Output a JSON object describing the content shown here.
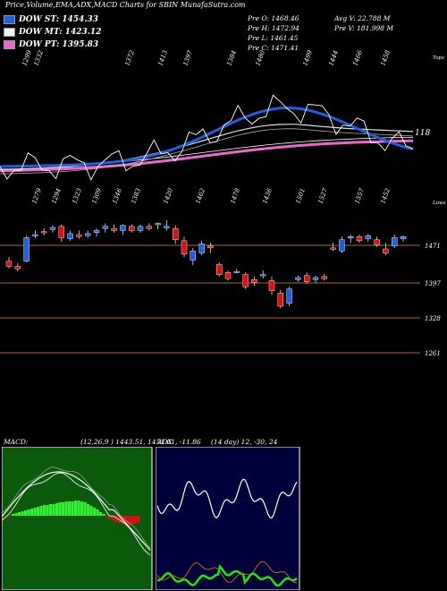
{
  "header": {
    "title": "Price,Volume,EMA,ADX,MACD Charts for SBIN",
    "site": "MunafaSutra.com"
  },
  "legend": [
    {
      "label": "DOW ST: 1454.33",
      "color": "#1f5fe0"
    },
    {
      "label": "DOW MT: 1423.12",
      "color": "#f2f2f2"
    },
    {
      "label": "DOW PT: 1395.83",
      "color": "#ee66cc"
    }
  ],
  "stats": {
    "pre_o": "Pre  O: 1468.46",
    "pre_h": "Pre  H: 1472.94",
    "pre_l": "Pre  L: 1461.45",
    "pre_c": "Pre  C: 1471.41",
    "avg_v": "Avg V: 22.788  M",
    "pre_v": "Pre  V: 181.998  M"
  },
  "panel1": {
    "label_top": "Tops",
    "label_bottom": "Lows",
    "last_value_label": "118",
    "top_labels": [
      "1299",
      "1332",
      "1372",
      "1413",
      "1397",
      "1384",
      "1480",
      "1499",
      "1444",
      "1466",
      "1458"
    ],
    "bottom_labels": [
      "1279",
      "1294",
      "1323",
      "1309",
      "1346",
      "1383",
      "1420",
      "1462",
      "1478",
      "1436",
      "1501",
      "1527",
      "1557",
      "1452"
    ]
  },
  "panel2": {
    "y_labels": [
      "1471",
      "1397",
      "1328",
      "1261"
    ]
  },
  "macd": {
    "label": "MACD:",
    "values": "(12,26,9 ) 1443.51,  1451.61,  -11.86"
  },
  "adx": {
    "label": "ADX",
    "values": "(14  day) 12,  -30,  24"
  },
  "chart_data": {
    "type": "candlestick",
    "ohlc": [
      [
        1440,
        1448,
        1426,
        1430
      ],
      [
        1430,
        1436,
        1420,
        1425
      ],
      [
        1440,
        1490,
        1438,
        1486
      ],
      [
        1490,
        1500,
        1485,
        1492
      ],
      [
        1498,
        1504,
        1490,
        1496
      ],
      [
        1502,
        1510,
        1496,
        1506
      ],
      [
        1508,
        1512,
        1478,
        1486
      ],
      [
        1484,
        1500,
        1480,
        1494
      ],
      [
        1492,
        1500,
        1484,
        1488
      ],
      [
        1490,
        1500,
        1486,
        1494
      ],
      [
        1496,
        1504,
        1488,
        1500
      ],
      [
        1504,
        1514,
        1496,
        1508
      ],
      [
        1504,
        1512,
        1496,
        1500
      ],
      [
        1500,
        1512,
        1492,
        1510
      ],
      [
        1508,
        1512,
        1496,
        1500
      ],
      [
        1500,
        1512,
        1496,
        1508
      ],
      [
        1508,
        1514,
        1500,
        1504
      ],
      [
        1512,
        1516,
        1502,
        1514
      ],
      [
        1505,
        1520,
        1500,
        1508
      ],
      [
        1504,
        1510,
        1474,
        1482
      ],
      [
        1480,
        1488,
        1448,
        1454
      ],
      [
        1442,
        1466,
        1432,
        1460
      ],
      [
        1456,
        1480,
        1452,
        1474
      ],
      [
        1470,
        1476,
        1456,
        1466
      ],
      [
        1434,
        1438,
        1410,
        1414
      ],
      [
        1418,
        1422,
        1402,
        1406
      ],
      [
        1420,
        1426,
        1416,
        1420
      ],
      [
        1414,
        1418,
        1386,
        1390
      ],
      [
        1404,
        1410,
        1392,
        1398
      ],
      [
        1412,
        1422,
        1406,
        1414
      ],
      [
        1402,
        1410,
        1374,
        1382
      ],
      [
        1378,
        1384,
        1348,
        1352
      ],
      [
        1358,
        1390,
        1352,
        1386
      ],
      [
        1404,
        1412,
        1400,
        1408
      ],
      [
        1412,
        1418,
        1396,
        1400
      ],
      [
        1404,
        1412,
        1398,
        1408
      ],
      [
        1410,
        1416,
        1402,
        1406
      ],
      [
        1466,
        1476,
        1460,
        1464
      ],
      [
        1460,
        1488,
        1456,
        1482
      ],
      [
        1486,
        1492,
        1476,
        1488
      ],
      [
        1488,
        1492,
        1476,
        1480
      ],
      [
        1484,
        1494,
        1478,
        1490
      ],
      [
        1482,
        1488,
        1468,
        1472
      ],
      [
        1464,
        1476,
        1452,
        1456
      ],
      [
        1470,
        1492,
        1466,
        1486
      ],
      [
        1484,
        1490,
        1478,
        1488
      ]
    ],
    "price_axis_ticks": [
      1471,
      1397,
      1328,
      1261
    ],
    "macd_histogram": [
      -1,
      -1,
      2,
      3,
      4,
      5,
      6,
      7,
      8,
      9,
      10,
      11,
      12,
      12,
      13,
      13,
      14,
      15,
      15,
      16,
      16,
      16,
      17,
      17,
      16,
      15,
      13,
      11,
      9,
      7,
      4,
      2,
      -1,
      -3,
      -5,
      -7,
      -8,
      -9,
      -9,
      -10,
      -10,
      -9,
      -8
    ],
    "ema_series": [
      "DOW ST",
      "DOW MT",
      "DOW PT"
    ]
  },
  "colors": {
    "bull": "#1f5fe0",
    "bear": "#e01010",
    "hline": "#a86a1a",
    "macd_hist": "#33ee33",
    "macd_neg": "#e01010",
    "adx_plus": "#11ee11",
    "adx_minus": "#cc6600",
    "panel_bg_macd": "#0b5a0b",
    "panel_bg_adx": "#00003a"
  }
}
